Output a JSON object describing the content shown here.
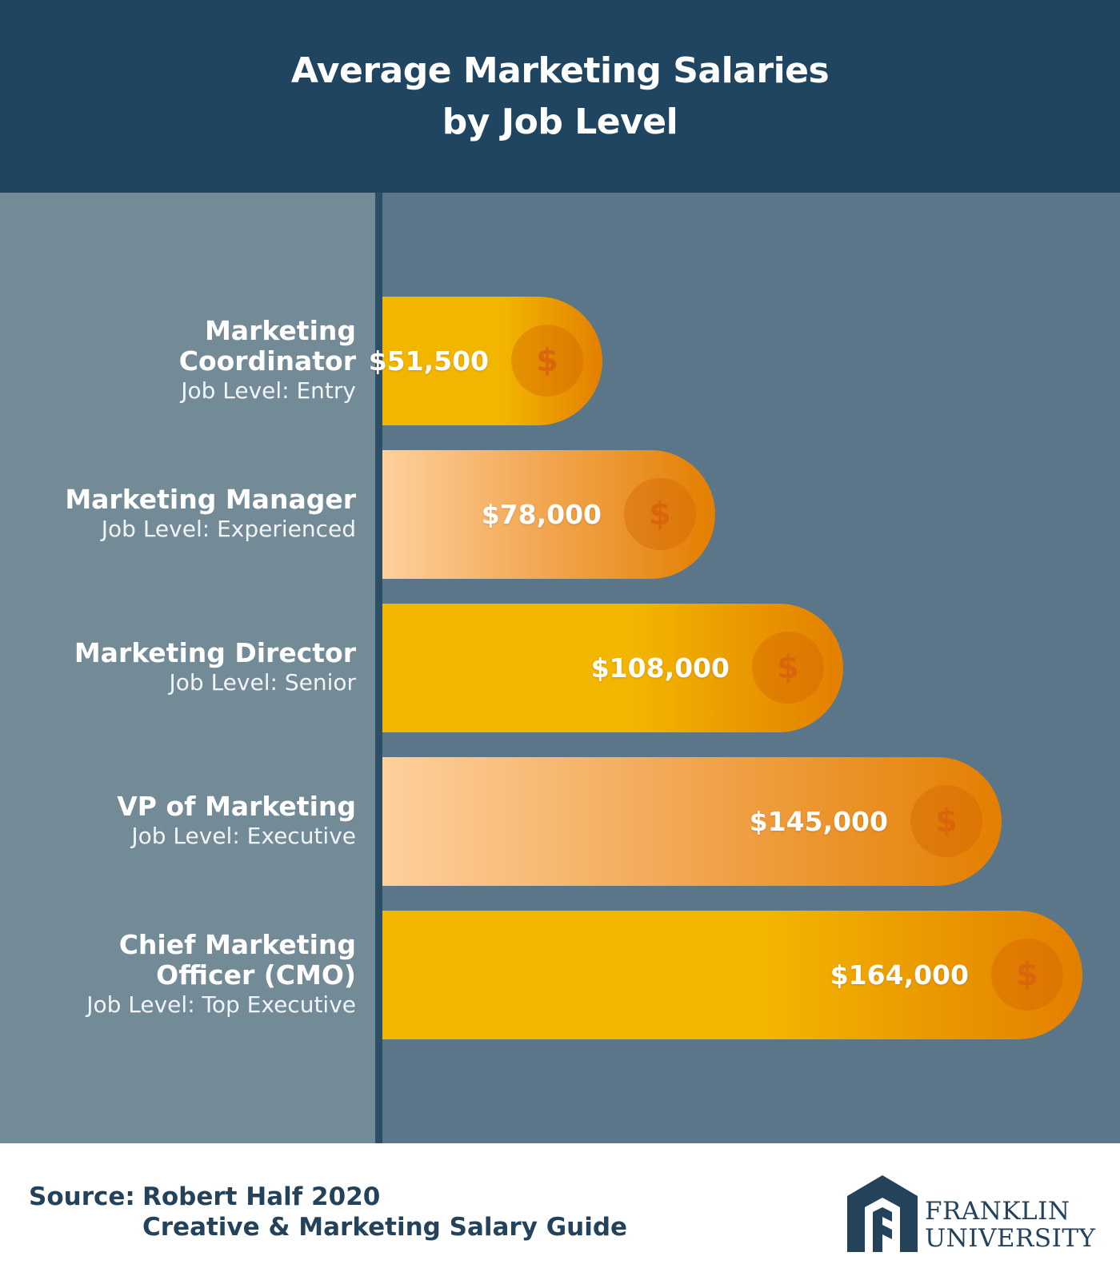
{
  "chart_data": {
    "type": "bar",
    "orientation": "horizontal",
    "title": [
      "Average Marketing Salaries",
      "by Job Level"
    ],
    "categories": [
      {
        "title": [
          "Marketing",
          "Coordinator"
        ],
        "level": "Job Level: Entry"
      },
      {
        "title": [
          "Marketing Manager"
        ],
        "level": "Job Level: Experienced"
      },
      {
        "title": [
          "Marketing Director"
        ],
        "level": "Job Level: Senior"
      },
      {
        "title": [
          "VP of Marketing"
        ],
        "level": "Job Level: Executive"
      },
      {
        "title": [
          "Chief Marketing",
          "Officer (CMO)"
        ],
        "level": "Job Level: Top Executive"
      }
    ],
    "values": [
      51500,
      78000,
      108000,
      145000,
      164000
    ],
    "value_labels": [
      "$51,500",
      "$78,000",
      "$108,000",
      "$145,000",
      "$164,000"
    ],
    "bar_styles": [
      "gold",
      "peach",
      "gold",
      "peach",
      "gold"
    ],
    "bar_icon": "dollar-coin-icon",
    "bar_icon_glyph": "$"
  },
  "footer": {
    "source_label": "Source:",
    "source_lines": [
      "Robert Half 2020",
      "Creative & Marketing Salary Guide"
    ],
    "logo": {
      "icon": "franklin-arch-logo-icon",
      "lines": [
        "FRANKLIN",
        "UNIVERSITY"
      ]
    }
  },
  "colors": {
    "header_bg": "#1f4560",
    "chart_bg": "#5a7688",
    "label_panel_bg": "#738a97",
    "axis_line": "#2c4f66",
    "gold_start": "#f2b500",
    "orange_end": "#e37f00",
    "peach_start": "#fdd09c",
    "footer_text": "#24435a"
  }
}
